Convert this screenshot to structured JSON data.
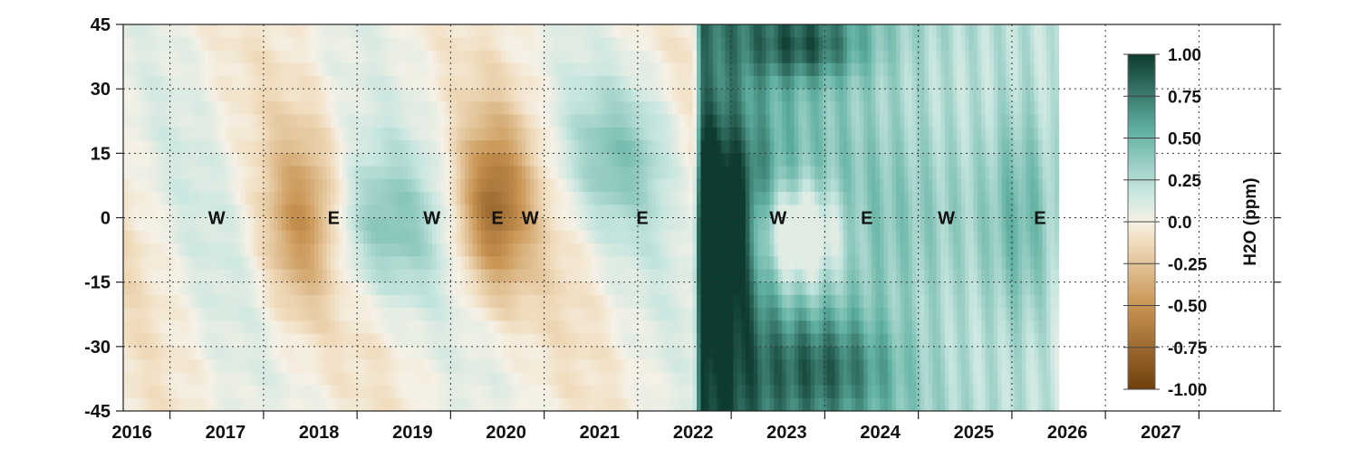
{
  "chart_data": {
    "type": "heatmap",
    "title": "",
    "xlabel": "",
    "ylabel": "",
    "x_range": [
      2015.5,
      2027.8
    ],
    "data_end": 2025.5,
    "ylim": [
      -45,
      45
    ],
    "yticks": [
      "45",
      "30",
      "15",
      "0",
      "-15",
      "-30",
      "-45"
    ],
    "ytick_values": [
      45,
      30,
      15,
      0,
      -15,
      -30,
      -45
    ],
    "xticks": [
      "2016",
      "2017",
      "2018",
      "2019",
      "2020",
      "2021",
      "2022",
      "2023",
      "2024",
      "2025",
      "2026",
      "2027"
    ],
    "xtick_values": [
      2016,
      2017,
      2018,
      2019,
      2020,
      2021,
      2022,
      2023,
      2024,
      2025,
      2026,
      2027
    ],
    "grid": true,
    "colorbar": {
      "label": "H2O (ppm)",
      "ticks": [
        "1.00",
        "0.75",
        "0.50",
        "0.25",
        "0.0",
        "-0.25",
        "-0.50",
        "-0.75",
        "-1.00"
      ],
      "tick_values": [
        1.0,
        0.75,
        0.5,
        0.25,
        0.0,
        -0.25,
        -0.5,
        -0.75,
        -1.0
      ],
      "range": [
        -1.0,
        1.0
      ],
      "colors": {
        "neg_max": "#6e3f0c",
        "neg_mid": "#c99553",
        "neg_low": "#f0dcbd",
        "zero": "#f6f1e6",
        "pos_low": "#c7e6e0",
        "pos_mid": "#5fb0a2",
        "pos_max": "#0e3b30"
      }
    },
    "annotations": [
      {
        "text": "W",
        "x": 2016.5,
        "y": 0
      },
      {
        "text": "E",
        "x": 2017.75,
        "y": 0
      },
      {
        "text": "W",
        "x": 2018.8,
        "y": 0
      },
      {
        "text": "E",
        "x": 2019.5,
        "y": 0
      },
      {
        "text": "W",
        "x": 2019.85,
        "y": 0
      },
      {
        "text": "E",
        "x": 2021.05,
        "y": 0
      },
      {
        "text": "W",
        "x": 2022.5,
        "y": 0
      },
      {
        "text": "E",
        "x": 2023.45,
        "y": 0
      },
      {
        "text": "W",
        "x": 2024.3,
        "y": 0
      },
      {
        "text": "E",
        "x": 2025.3,
        "y": 0
      }
    ],
    "anomaly_features": [
      {
        "t": 2017.4,
        "lat": -2,
        "value": -0.45,
        "note": "dry anomaly"
      },
      {
        "t": 2019.45,
        "lat": 2,
        "value": -0.65,
        "note": "dry anomaly"
      },
      {
        "t": 2018.2,
        "lat": -3,
        "value": 0.35,
        "note": "moist anomaly"
      },
      {
        "t": 2020.8,
        "lat": 15,
        "value": 0.3,
        "note": "moist anomaly"
      },
      {
        "t": 2021.8,
        "lat": -10,
        "value": 1.0,
        "note": "Hunga Tonga injection"
      },
      {
        "t": 2023.0,
        "lat": -35,
        "value": 0.85,
        "note": "southern plume"
      },
      {
        "t": 2022.8,
        "lat": 40,
        "value": 0.8,
        "note": "northern plume"
      },
      {
        "t": 2025.0,
        "lat": 0,
        "value": 0.5,
        "note": "tropical moist band"
      }
    ]
  }
}
